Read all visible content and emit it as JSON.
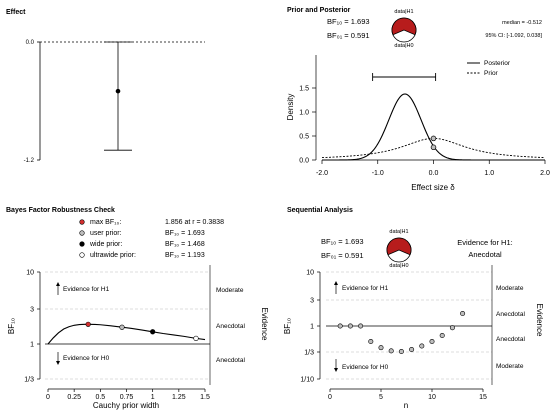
{
  "chart_data": [
    {
      "type": "scatter",
      "title": "Effect",
      "y_ticks": [
        "0.0",
        "-1.2"
      ],
      "ylim": [
        -1.2,
        0.0
      ],
      "point": {
        "estimate": -0.5,
        "ci_lower": -1.1,
        "ci_upper": 0.0
      }
    },
    {
      "type": "line",
      "title": "Prior and Posterior",
      "bf10": "BF₁₀ = 1.693",
      "bf01": "BF₀₁ = 0.591",
      "pie_top": "data|H1",
      "pie_bottom": "data|H0",
      "pie_h1_share": 0.629,
      "median": "median = -0.512",
      "ci": "95% CI: [-1.092, 0.038]",
      "xlabel": "Effect size δ",
      "ylabel": "Density",
      "x_ticks": [
        "-2.0",
        "-1.0",
        "0.0",
        "1.0",
        "2.0"
      ],
      "y_ticks": [
        "0.0",
        "0.5",
        "1.0",
        "1.5"
      ],
      "xlim": [
        -2,
        2
      ],
      "ylim": [
        0,
        1.6
      ],
      "series": [
        {
          "name": "Posterior",
          "mean": -0.512,
          "sd": 0.29
        },
        {
          "name": "Prior",
          "family": "cauchy",
          "scale": 0.707
        }
      ],
      "ci_interval": [
        -1.092,
        0.038
      ],
      "points": [
        {
          "x": 0.0,
          "y": 0.45
        },
        {
          "x": 0.0,
          "y": 0.265
        }
      ]
    },
    {
      "type": "line",
      "title": "Bayes Factor Robustness Check",
      "legend": [
        {
          "label": "max BF₁₀:",
          "value": "1.856 at r = 0.3838",
          "fill": "#d32f2f"
        },
        {
          "label": "user prior:",
          "value": "BF₁₀ = 1.693",
          "fill": "#bdbdbd"
        },
        {
          "label": "wide prior:",
          "value": "BF₁₀ = 1.468",
          "fill": "#000000"
        },
        {
          "label": "ultrawide prior:",
          "value": "BF₁₀ = 1.193",
          "fill": "#ffffff"
        }
      ],
      "xlabel": "Cauchy prior width",
      "ylabel": "BF₁₀",
      "right_label": "Evidence",
      "x_ticks": [
        "0",
        "0.25",
        "0.5",
        "0.75",
        "1",
        "1.25",
        "1.5"
      ],
      "y_ticks": [
        "1/3",
        "1",
        "3",
        "10"
      ],
      "xlim": [
        0,
        1.5
      ],
      "annotations": [
        "Evidence for H1",
        "Evidence for H0"
      ],
      "evidence_levels": [
        "Moderate",
        "Anecdotal",
        "Anecdotal"
      ],
      "x": [
        0,
        0.05,
        0.1,
        0.15,
        0.2,
        0.25,
        0.3,
        0.35,
        0.3838,
        0.45,
        0.5,
        0.6,
        0.707,
        0.8,
        0.9,
        1.0,
        1.1,
        1.2,
        1.3,
        1.414,
        1.5
      ],
      "values": [
        1.0,
        1.21,
        1.42,
        1.6,
        1.72,
        1.8,
        1.84,
        1.855,
        1.856,
        1.85,
        1.83,
        1.77,
        1.693,
        1.63,
        1.55,
        1.468,
        1.39,
        1.33,
        1.27,
        1.193,
        1.15
      ],
      "points": [
        {
          "x": 0.3838,
          "y": 1.856,
          "fill": "#d32f2f"
        },
        {
          "x": 0.707,
          "y": 1.693,
          "fill": "#bdbdbd"
        },
        {
          "x": 1.0,
          "y": 1.468,
          "fill": "#000000"
        },
        {
          "x": 1.414,
          "y": 1.193,
          "fill": "#ffffff"
        }
      ]
    },
    {
      "type": "scatter",
      "title": "Sequential Analysis",
      "bf10": "BF₁₀ = 1.693",
      "bf01": "BF₀₁ = 0.591",
      "pie_top": "data|H1",
      "pie_bottom": "data|H0",
      "pie_h1_share": 0.629,
      "evidence_title": "Evidence for H1:",
      "evidence_level": "Anecdotal",
      "xlabel": "n",
      "ylabel": "BF₁₀",
      "right_label": "Evidence",
      "x_ticks": [
        "0",
        "5",
        "10",
        "15"
      ],
      "y_ticks": [
        "1/10",
        "1/3",
        "1",
        "3",
        "10"
      ],
      "xlim": [
        0,
        15
      ],
      "annotations": [
        "Evidence for H1",
        "Evidence for H0"
      ],
      "evidence_levels": [
        "Moderate",
        "Anecdotal",
        "Anecdotal",
        "Moderate"
      ],
      "x": [
        1,
        2,
        3,
        4,
        5,
        6,
        7,
        8,
        9,
        10,
        11,
        12,
        13
      ],
      "values": [
        1.0,
        1.0,
        1.0,
        0.52,
        0.4,
        0.35,
        0.34,
        0.37,
        0.43,
        0.52,
        0.67,
        0.93,
        1.693
      ]
    }
  ]
}
